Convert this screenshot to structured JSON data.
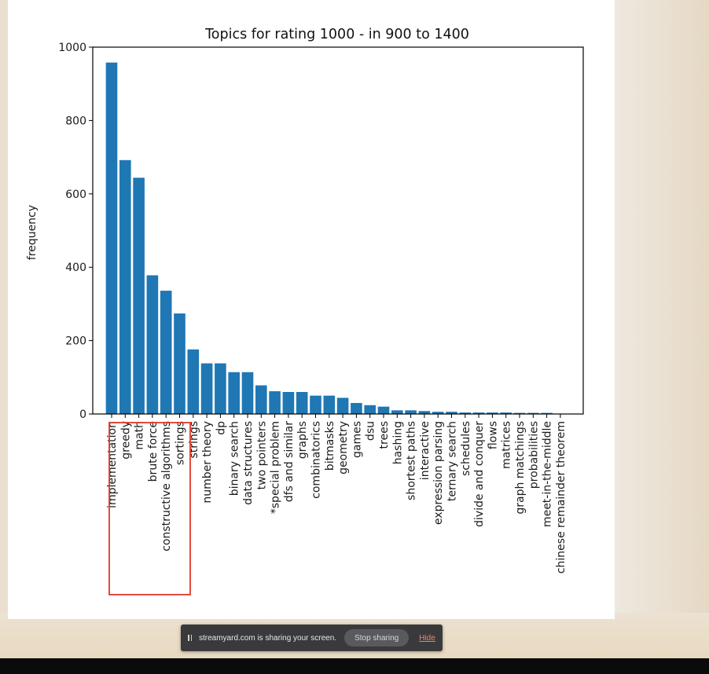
{
  "chart_data": {
    "type": "bar",
    "title": "Topics for rating 1000 - in 900 to 1400",
    "xlabel": "",
    "ylabel": "frequency",
    "ylim": [
      0,
      1000
    ],
    "yticks": [
      0,
      200,
      400,
      600,
      800,
      1000
    ],
    "grid": false,
    "bar_color": "#1f77b4",
    "categories": [
      "implementation",
      "greedy",
      "math",
      "brute force",
      "constructive algorithms",
      "sortings",
      "strings",
      "number theory",
      "dp",
      "binary search",
      "data structures",
      "two pointers",
      "*special problem",
      "dfs and similar",
      "graphs",
      "combinatorics",
      "bitmasks",
      "geometry",
      "games",
      "dsu",
      "trees",
      "hashing",
      "shortest paths",
      "interactive",
      "expression parsing",
      "ternary search",
      "schedules",
      "divide and conquer",
      "flows",
      "matrices",
      "graph matchings",
      "probabilities",
      "meet-in-the-middle",
      "chinese remainder theorem"
    ],
    "values": [
      958,
      692,
      644,
      378,
      336,
      274,
      176,
      138,
      138,
      114,
      114,
      78,
      62,
      60,
      60,
      50,
      50,
      44,
      30,
      24,
      20,
      10,
      10,
      8,
      6,
      6,
      4,
      4,
      4,
      4,
      3,
      3,
      3,
      1
    ]
  },
  "annotation": {
    "highlight_color": "#e0392b"
  },
  "share_bar": {
    "pause_icon": "pause-icon",
    "message": "streamyard.com is sharing your screen.",
    "stop_label": "Stop sharing",
    "hide_label": "Hide",
    "hide_color": "#f08070"
  }
}
